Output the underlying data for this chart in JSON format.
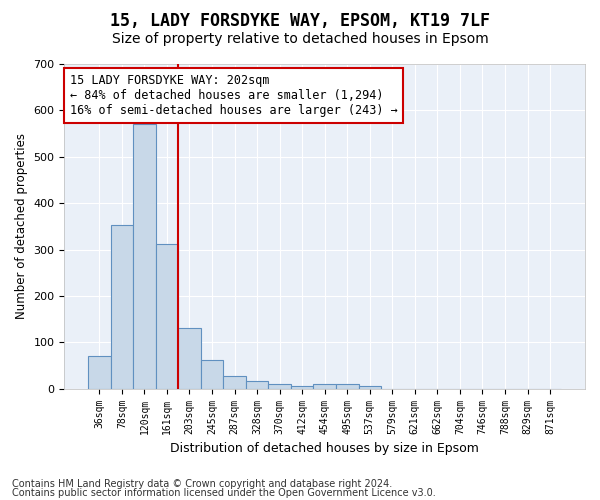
{
  "title1": "15, LADY FORSDYKE WAY, EPSOM, KT19 7LF",
  "title2": "Size of property relative to detached houses in Epsom",
  "xlabel": "Distribution of detached houses by size in Epsom",
  "ylabel": "Number of detached properties",
  "bin_labels": [
    "36sqm",
    "78sqm",
    "120sqm",
    "161sqm",
    "203sqm",
    "245sqm",
    "287sqm",
    "328sqm",
    "370sqm",
    "412sqm",
    "454sqm",
    "495sqm",
    "537sqm",
    "579sqm",
    "621sqm",
    "662sqm",
    "704sqm",
    "746sqm",
    "788sqm",
    "829sqm",
    "871sqm"
  ],
  "bar_heights": [
    70,
    353,
    570,
    313,
    130,
    62,
    27,
    16,
    10,
    6,
    10,
    10,
    5,
    0,
    0,
    0,
    0,
    0,
    0,
    0,
    0
  ],
  "bar_color": "#c8d8e8",
  "bar_edge_color": "#6090c0",
  "vline_x_idx": 4,
  "vline_color": "#cc0000",
  "annotation_line1": "15 LADY FORSDYKE WAY: 202sqm",
  "annotation_line2": "← 84% of detached houses are smaller (1,294)",
  "annotation_line3": "16% of semi-detached houses are larger (243) →",
  "annotation_box_color": "#ffffff",
  "annotation_box_edge_color": "#cc0000",
  "ylim": [
    0,
    700
  ],
  "yticks": [
    0,
    100,
    200,
    300,
    400,
    500,
    600,
    700
  ],
  "footer1": "Contains HM Land Registry data © Crown copyright and database right 2024.",
  "footer2": "Contains public sector information licensed under the Open Government Licence v3.0.",
  "plot_bg_color": "#eaf0f8",
  "grid_color": "#ffffff",
  "title1_fontsize": 12,
  "title2_fontsize": 10,
  "annotation_fontsize": 8.5,
  "footer_fontsize": 7
}
